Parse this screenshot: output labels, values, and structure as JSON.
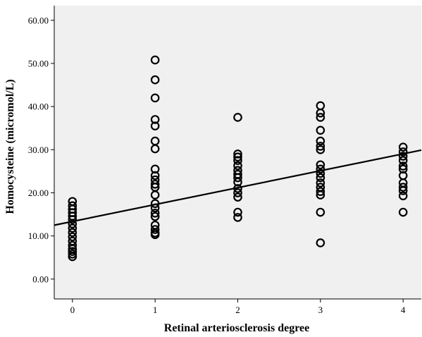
{
  "chart_data": {
    "type": "scatter",
    "xlabel": "Retinal arteriosclerosis degree",
    "ylabel": "Homocysteine (micromol/L)",
    "xlim": [
      -0.22,
      4.22
    ],
    "ylim": [
      -4.6,
      63.4
    ],
    "x_ticks": [
      0,
      1,
      2,
      3,
      4
    ],
    "y_ticks": [
      0,
      10,
      20,
      30,
      40,
      50,
      60
    ],
    "x_tick_labels": [
      "0",
      "1",
      "2",
      "3",
      "4"
    ],
    "y_tick_labels": [
      "0.00",
      "10.00",
      "20.00",
      "30.00",
      "40.00",
      "50.00",
      "60.00"
    ],
    "grid": false,
    "marker": "open-circle",
    "plot_background": "#f0f0f0",
    "points": [
      {
        "x": 0,
        "y": 18.0
      },
      {
        "x": 0,
        "y": 17.0
      },
      {
        "x": 0,
        "y": 16.2
      },
      {
        "x": 0,
        "y": 15.4
      },
      {
        "x": 0,
        "y": 14.6
      },
      {
        "x": 0,
        "y": 13.8
      },
      {
        "x": 0,
        "y": 12.8
      },
      {
        "x": 0,
        "y": 11.8
      },
      {
        "x": 0,
        "y": 10.8
      },
      {
        "x": 0,
        "y": 9.8
      },
      {
        "x": 0,
        "y": 8.8
      },
      {
        "x": 0,
        "y": 7.8
      },
      {
        "x": 0,
        "y": 7.0
      },
      {
        "x": 0,
        "y": 6.4
      },
      {
        "x": 0,
        "y": 5.8
      },
      {
        "x": 0,
        "y": 5.2
      },
      {
        "x": 1,
        "y": 50.8
      },
      {
        "x": 1,
        "y": 46.2
      },
      {
        "x": 1,
        "y": 42.0
      },
      {
        "x": 1,
        "y": 37.0
      },
      {
        "x": 1,
        "y": 35.5
      },
      {
        "x": 1,
        "y": 32.0
      },
      {
        "x": 1,
        "y": 30.2
      },
      {
        "x": 1,
        "y": 25.5
      },
      {
        "x": 1,
        "y": 24.0
      },
      {
        "x": 1,
        "y": 23.0
      },
      {
        "x": 1,
        "y": 22.0
      },
      {
        "x": 1,
        "y": 21.3
      },
      {
        "x": 1,
        "y": 19.5
      },
      {
        "x": 1,
        "y": 17.5
      },
      {
        "x": 1,
        "y": 16.5
      },
      {
        "x": 1,
        "y": 15.3
      },
      {
        "x": 1,
        "y": 14.5
      },
      {
        "x": 1,
        "y": 12.5
      },
      {
        "x": 1,
        "y": 11.5
      },
      {
        "x": 1,
        "y": 10.7
      },
      {
        "x": 1,
        "y": 10.3
      },
      {
        "x": 2,
        "y": 37.5
      },
      {
        "x": 2,
        "y": 29.0
      },
      {
        "x": 2,
        "y": 28.3
      },
      {
        "x": 2,
        "y": 27.5
      },
      {
        "x": 2,
        "y": 26.3
      },
      {
        "x": 2,
        "y": 25.2
      },
      {
        "x": 2,
        "y": 24.3
      },
      {
        "x": 2,
        "y": 23.5
      },
      {
        "x": 2,
        "y": 22.5
      },
      {
        "x": 2,
        "y": 21.0
      },
      {
        "x": 2,
        "y": 20.0
      },
      {
        "x": 2,
        "y": 19.0
      },
      {
        "x": 2,
        "y": 15.5
      },
      {
        "x": 2,
        "y": 14.3
      },
      {
        "x": 3,
        "y": 40.2
      },
      {
        "x": 3,
        "y": 38.5
      },
      {
        "x": 3,
        "y": 37.5
      },
      {
        "x": 3,
        "y": 34.5
      },
      {
        "x": 3,
        "y": 32.0
      },
      {
        "x": 3,
        "y": 30.8
      },
      {
        "x": 3,
        "y": 30.0
      },
      {
        "x": 3,
        "y": 26.5
      },
      {
        "x": 3,
        "y": 25.5
      },
      {
        "x": 3,
        "y": 24.5
      },
      {
        "x": 3,
        "y": 23.5
      },
      {
        "x": 3,
        "y": 22.3
      },
      {
        "x": 3,
        "y": 21.3
      },
      {
        "x": 3,
        "y": 20.3
      },
      {
        "x": 3,
        "y": 19.5
      },
      {
        "x": 3,
        "y": 15.5
      },
      {
        "x": 3,
        "y": 8.4
      },
      {
        "x": 4,
        "y": 30.6
      },
      {
        "x": 4,
        "y": 29.5
      },
      {
        "x": 4,
        "y": 28.5
      },
      {
        "x": 4,
        "y": 27.5
      },
      {
        "x": 4,
        "y": 26.2
      },
      {
        "x": 4,
        "y": 25.5
      },
      {
        "x": 4,
        "y": 24.0
      },
      {
        "x": 4,
        "y": 22.3
      },
      {
        "x": 4,
        "y": 21.3
      },
      {
        "x": 4,
        "y": 20.5
      },
      {
        "x": 4,
        "y": 19.3
      },
      {
        "x": 4,
        "y": 15.5
      }
    ],
    "fit_line": {
      "x": [
        -0.22,
        4.22
      ],
      "y": [
        12.5,
        29.9
      ]
    }
  }
}
